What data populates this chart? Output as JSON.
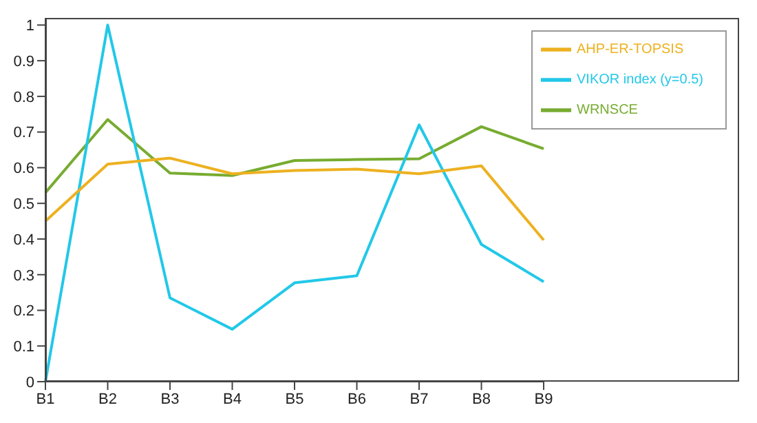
{
  "chart_data": {
    "type": "line",
    "categories": [
      "B1",
      "B2",
      "B3",
      "B4",
      "B5",
      "B6",
      "B7",
      "B8",
      "B9"
    ],
    "series": [
      {
        "name": "WRNSCE",
        "color": "#77ac30",
        "values": [
          0.53,
          0.735,
          0.585,
          0.578,
          0.62,
          0.623,
          0.625,
          0.715,
          0.653
        ]
      },
      {
        "name": "VIKOR index (y=0.5)",
        "color": "#22c8e8",
        "values": [
          0,
          1,
          0.235,
          0.147,
          0.277,
          0.297,
          0.72,
          0.385,
          0.28
        ]
      },
      {
        "name": "AHP-ER-TOPSIS",
        "color": "#edb120",
        "values": [
          0.45,
          0.61,
          0.627,
          0.583,
          0.592,
          0.596,
          0.583,
          0.605,
          0.397
        ]
      }
    ],
    "ylim": [
      0,
      1.02
    ],
    "yticks": [
      0,
      0.1,
      0.2,
      0.3,
      0.4,
      0.5,
      0.6,
      0.7,
      0.8,
      0.9,
      1
    ],
    "grid": false,
    "legend": "top right",
    "marker": "none",
    "line_style": "solid"
  }
}
